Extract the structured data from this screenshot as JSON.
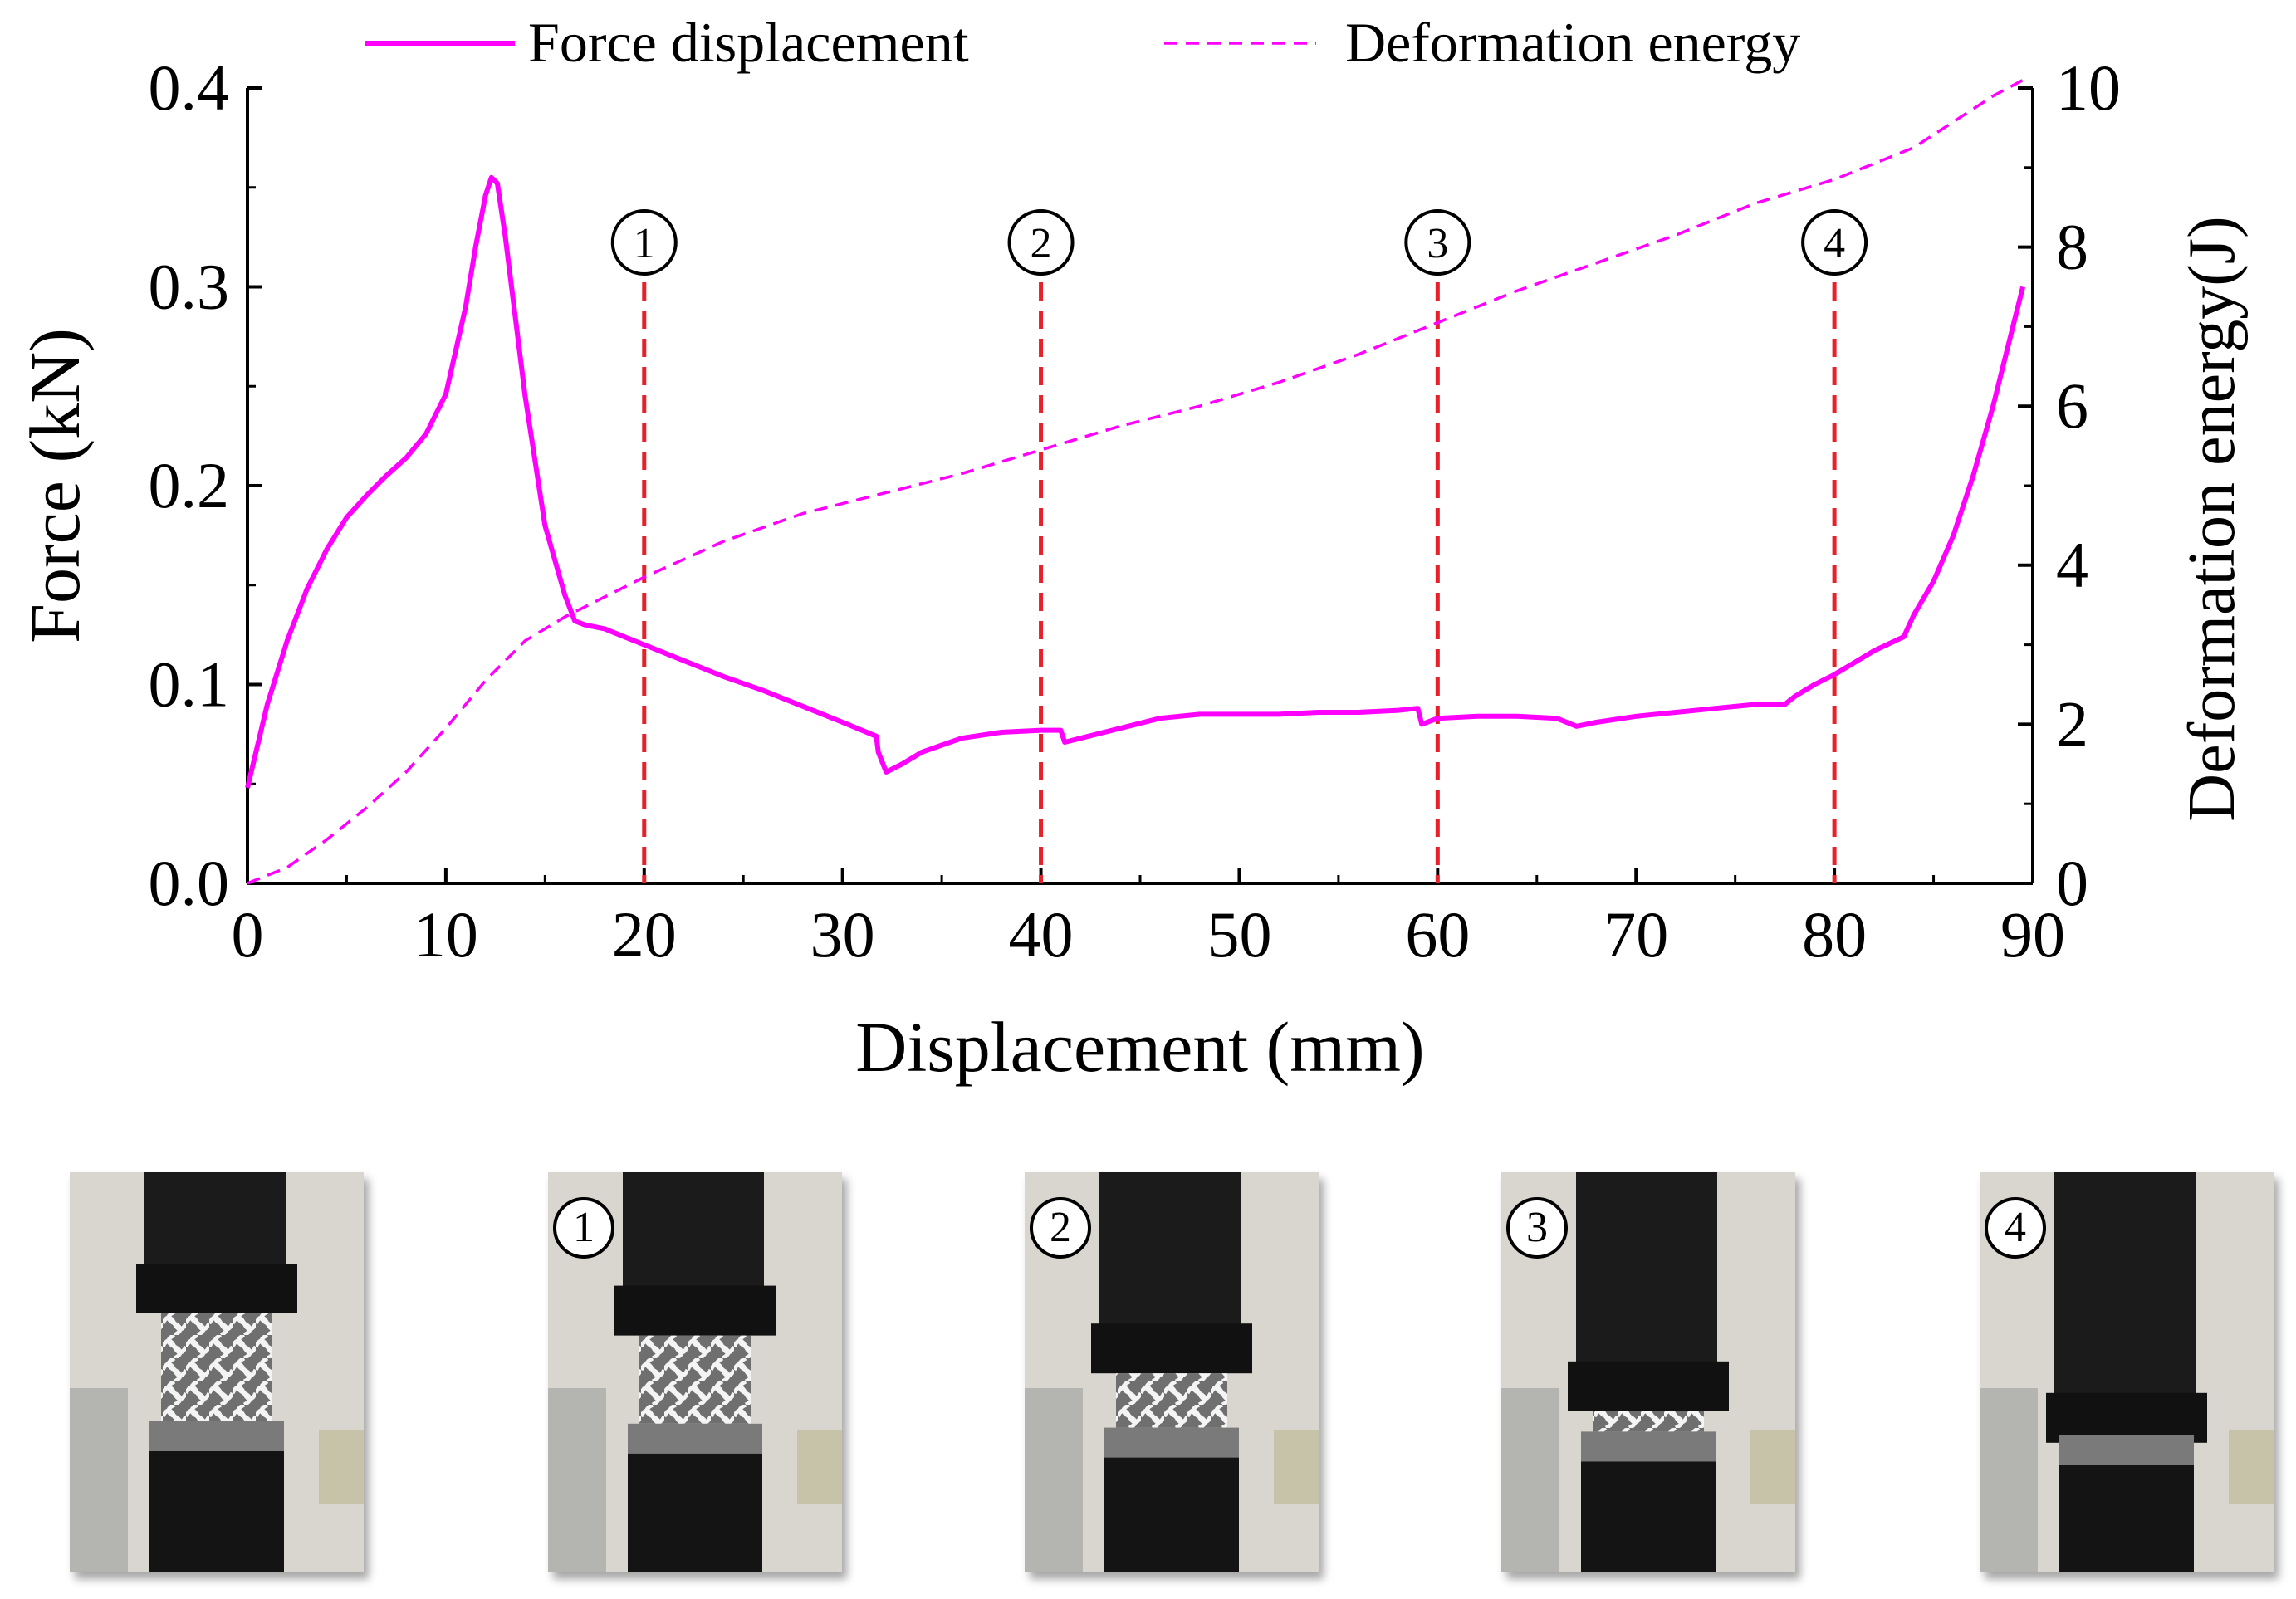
{
  "chart_data": {
    "type": "line",
    "xlabel": "Displacement (mm)",
    "ylabel": "Force (kN)",
    "y2label": "Deformation energy(J)",
    "xlim": [
      0,
      90
    ],
    "ylim": [
      0,
      0.4
    ],
    "y2lim": [
      0,
      10
    ],
    "xticks": [
      "0",
      "10",
      "20",
      "30",
      "40",
      "50",
      "60",
      "70",
      "80",
      "90"
    ],
    "yticks": [
      "0.0",
      "0.1",
      "0.2",
      "0.3",
      "0.4"
    ],
    "y2ticks": [
      "0",
      "2",
      "4",
      "6",
      "8",
      "10"
    ],
    "legend": {
      "position": "top",
      "entries": [
        "Force displacement",
        "Deformation energy"
      ]
    },
    "color": "#ff00ff",
    "marker_color": "#e8202a",
    "series": [
      {
        "name": "Force displacement",
        "axis": "left",
        "style": "solid",
        "points": [
          [
            0,
            0.048
          ],
          [
            1,
            0.09
          ],
          [
            2,
            0.122
          ],
          [
            3,
            0.148
          ],
          [
            4,
            0.168
          ],
          [
            5,
            0.184
          ],
          [
            6,
            0.195
          ],
          [
            7,
            0.205
          ],
          [
            8,
            0.214
          ],
          [
            9,
            0.226
          ],
          [
            10,
            0.246
          ],
          [
            11,
            0.29
          ],
          [
            11.5,
            0.32
          ],
          [
            12,
            0.346
          ],
          [
            12.3,
            0.355
          ],
          [
            12.6,
            0.352
          ],
          [
            13,
            0.325
          ],
          [
            14,
            0.245
          ],
          [
            15,
            0.18
          ],
          [
            16,
            0.145
          ],
          [
            16.5,
            0.132
          ],
          [
            17,
            0.13
          ],
          [
            18,
            0.128
          ],
          [
            20,
            0.12
          ],
          [
            22,
            0.112
          ],
          [
            24,
            0.104
          ],
          [
            26,
            0.097
          ],
          [
            28,
            0.089
          ],
          [
            30,
            0.081
          ],
          [
            31.7,
            0.074
          ],
          [
            31.8,
            0.066
          ],
          [
            32.2,
            0.056
          ],
          [
            33,
            0.06
          ],
          [
            34,
            0.066
          ],
          [
            36,
            0.073
          ],
          [
            38,
            0.076
          ],
          [
            40,
            0.077
          ],
          [
            41,
            0.077
          ],
          [
            41.2,
            0.071
          ],
          [
            42,
            0.073
          ],
          [
            44,
            0.078
          ],
          [
            46,
            0.083
          ],
          [
            48,
            0.085
          ],
          [
            50,
            0.085
          ],
          [
            52,
            0.085
          ],
          [
            54,
            0.086
          ],
          [
            56,
            0.086
          ],
          [
            58,
            0.087
          ],
          [
            59,
            0.088
          ],
          [
            59.2,
            0.08
          ],
          [
            60,
            0.083
          ],
          [
            62,
            0.084
          ],
          [
            64,
            0.084
          ],
          [
            66,
            0.083
          ],
          [
            67,
            0.079
          ],
          [
            68,
            0.081
          ],
          [
            70,
            0.084
          ],
          [
            72,
            0.086
          ],
          [
            74,
            0.088
          ],
          [
            76,
            0.09
          ],
          [
            77.5,
            0.09
          ],
          [
            78,
            0.094
          ],
          [
            79,
            0.1
          ],
          [
            80,
            0.105
          ],
          [
            81,
            0.111
          ],
          [
            82,
            0.117
          ],
          [
            83.5,
            0.124
          ],
          [
            84,
            0.135
          ],
          [
            85,
            0.152
          ],
          [
            86,
            0.175
          ],
          [
            87,
            0.205
          ],
          [
            88,
            0.24
          ],
          [
            89,
            0.28
          ],
          [
            89.5,
            0.3
          ]
        ]
      },
      {
        "name": "Deformation energy",
        "axis": "right",
        "style": "dashed",
        "points": [
          [
            0,
            0
          ],
          [
            2,
            0.2
          ],
          [
            4,
            0.55
          ],
          [
            6,
            0.95
          ],
          [
            8,
            1.4
          ],
          [
            10,
            1.95
          ],
          [
            12,
            2.55
          ],
          [
            14,
            3.05
          ],
          [
            16,
            3.35
          ],
          [
            18,
            3.6
          ],
          [
            20,
            3.85
          ],
          [
            24,
            4.3
          ],
          [
            28,
            4.65
          ],
          [
            32,
            4.9
          ],
          [
            36,
            5.15
          ],
          [
            40,
            5.45
          ],
          [
            44,
            5.75
          ],
          [
            48,
            6.0
          ],
          [
            52,
            6.3
          ],
          [
            56,
            6.65
          ],
          [
            60,
            7.05
          ],
          [
            64,
            7.45
          ],
          [
            68,
            7.8
          ],
          [
            72,
            8.15
          ],
          [
            76,
            8.55
          ],
          [
            80,
            8.85
          ],
          [
            84,
            9.25
          ],
          [
            88,
            9.9
          ],
          [
            89.5,
            10.1
          ]
        ]
      }
    ],
    "markers": [
      {
        "label": "1",
        "x": 20
      },
      {
        "label": "2",
        "x": 40
      },
      {
        "label": "3",
        "x": 60
      },
      {
        "label": "4",
        "x": 80
      }
    ]
  },
  "photos": [
    {
      "name": "photo-initial",
      "label": ""
    },
    {
      "name": "photo-stage-1",
      "label": "1"
    },
    {
      "name": "photo-stage-2",
      "label": "2"
    },
    {
      "name": "photo-stage-3",
      "label": "3"
    },
    {
      "name": "photo-stage-4",
      "label": "4"
    }
  ]
}
